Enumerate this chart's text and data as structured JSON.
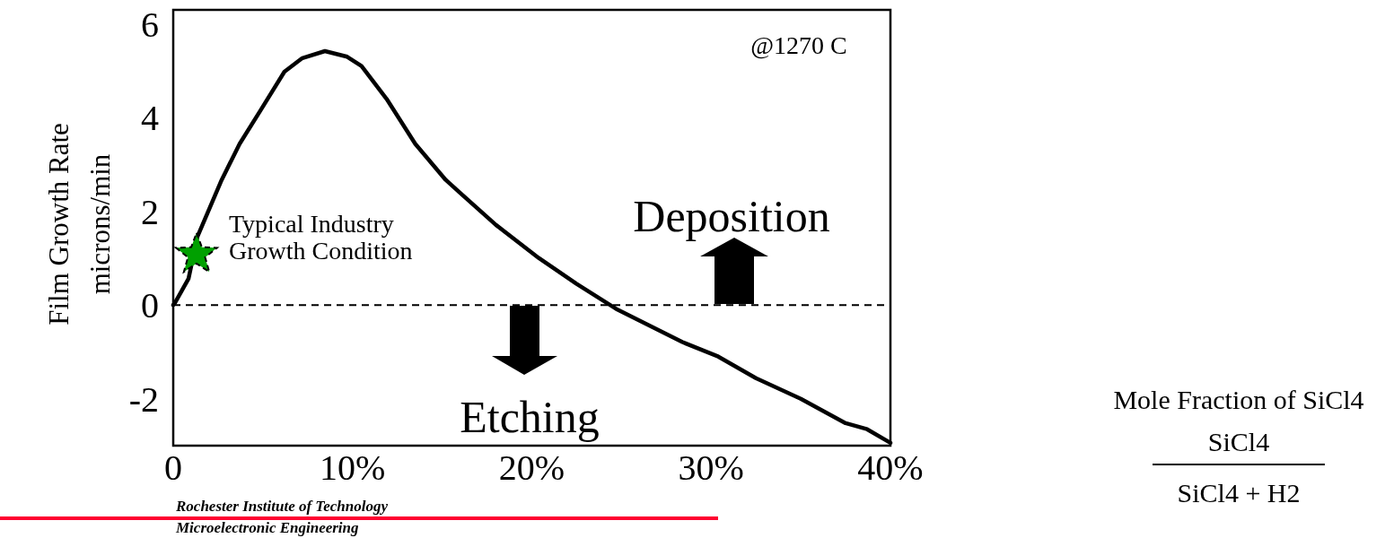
{
  "chart_data": {
    "type": "line",
    "ylabel": "Film Growth Rate\nmicrons/min",
    "xlim": [
      0,
      40
    ],
    "ylim": [
      -3,
      6.3
    ],
    "xticks": [
      0,
      {
        "value": 10,
        "label": "10%"
      },
      {
        "value": 20,
        "label": "20%"
      },
      {
        "value": 30,
        "label": "30%"
      },
      {
        "value": 40,
        "label": "40%"
      }
    ],
    "yticks": [
      -2,
      0,
      2,
      4,
      6
    ],
    "grid": false,
    "series": [
      {
        "color": "#000000",
        "marker": "none",
        "x": [
          0,
          0.1,
          0.85,
          1.35,
          2.7,
          3.7,
          4.86,
          6.2,
          7.2,
          8.46,
          9.7,
          10.5,
          11.9,
          13.5,
          15.2,
          18.0,
          20.4,
          22.5,
          24.7,
          28.4,
          30.4,
          32.5,
          35.0,
          37.5,
          38.7,
          40
        ],
        "values": [
          0,
          0.05,
          0.56,
          1.46,
          2.67,
          3.44,
          4.15,
          4.98,
          5.27,
          5.42,
          5.3,
          5.1,
          4.4,
          3.44,
          2.67,
          1.71,
          1.0,
          0.45,
          -0.08,
          -0.79,
          -1.1,
          -1.56,
          -2.0,
          -2.52,
          -2.65,
          -2.94
        ]
      },
      {
        "type": "scatter",
        "color": "#00a000",
        "marker": "star",
        "x": [
          1.3
        ],
        "values": [
          1.08
        ]
      }
    ],
    "ref_lines": [
      {
        "axis": "y",
        "value": 0,
        "line_style": "dashed",
        "color": "#000000"
      }
    ],
    "annotations": [
      "@1270 C",
      {
        "text": "Typical Industry\nGrowth Condition",
        "x": 1.3,
        "y": 1.08
      },
      "Deposition",
      "Etching",
      "Mole Fraction of SiCl4",
      "SiCl4",
      "SiCl4 + H2",
      "Rochester Institute of Technology\nMicroelectronic Engineering"
    ]
  }
}
